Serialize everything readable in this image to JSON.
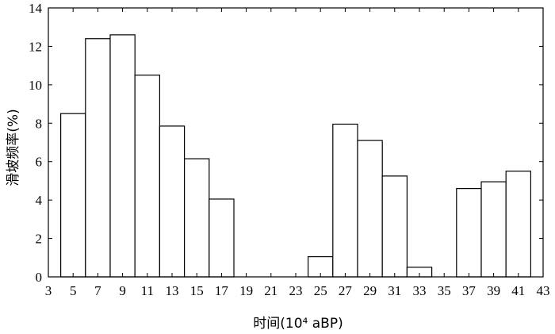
{
  "chart_data": {
    "type": "bar",
    "xlabel": "时间(10⁴ aBP)",
    "ylabel": "滑坡频率(%)",
    "xlim": [
      3,
      43
    ],
    "ylim": [
      0,
      14
    ],
    "x_ticks": [
      3,
      5,
      7,
      9,
      11,
      13,
      15,
      17,
      19,
      21,
      23,
      25,
      27,
      29,
      31,
      33,
      35,
      37,
      39,
      41,
      43
    ],
    "y_ticks": [
      0,
      2,
      4,
      6,
      8,
      10,
      12,
      14
    ],
    "bin_width": 2,
    "bars": [
      {
        "start": 4,
        "end": 6,
        "value": 8.5
      },
      {
        "start": 6,
        "end": 8,
        "value": 12.4
      },
      {
        "start": 8,
        "end": 10,
        "value": 12.6
      },
      {
        "start": 10,
        "end": 12,
        "value": 10.5
      },
      {
        "start": 12,
        "end": 14,
        "value": 7.85
      },
      {
        "start": 14,
        "end": 16,
        "value": 6.15
      },
      {
        "start": 16,
        "end": 18,
        "value": 4.05
      },
      {
        "start": 24,
        "end": 26,
        "value": 1.05
      },
      {
        "start": 26,
        "end": 28,
        "value": 7.95
      },
      {
        "start": 28,
        "end": 30,
        "value": 7.1
      },
      {
        "start": 30,
        "end": 32,
        "value": 5.25
      },
      {
        "start": 32,
        "end": 34,
        "value": 0.5
      },
      {
        "start": 36,
        "end": 38,
        "value": 4.6
      },
      {
        "start": 38,
        "end": 40,
        "value": 4.95
      },
      {
        "start": 40,
        "end": 42,
        "value": 5.5
      }
    ],
    "grid": false,
    "legend": "none"
  }
}
